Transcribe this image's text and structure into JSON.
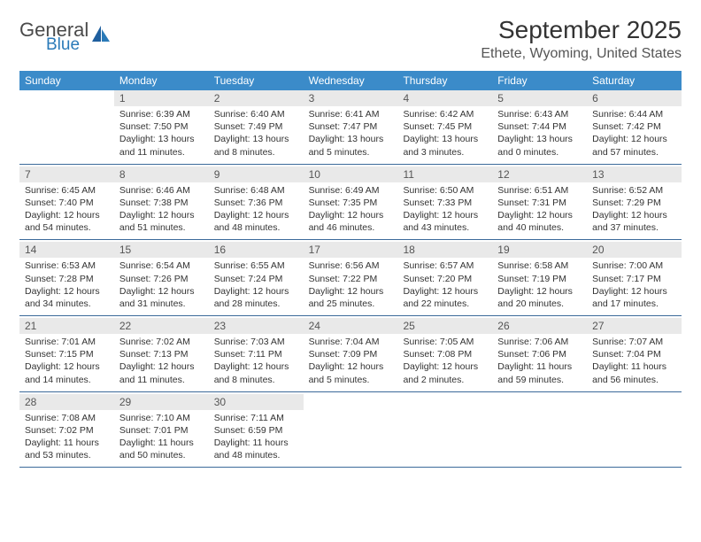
{
  "brand": {
    "general": "General",
    "blue": "Blue"
  },
  "title": "September 2025",
  "location": "Ethete, Wyoming, United States",
  "weekdays": [
    "Sunday",
    "Monday",
    "Tuesday",
    "Wednesday",
    "Thursday",
    "Friday",
    "Saturday"
  ],
  "colors": {
    "header_bg": "#3b8bc9",
    "header_text": "#ffffff",
    "daynum_bg": "#e9e9e9",
    "daynum_text": "#555555",
    "body_text": "#333333",
    "rule": "#3b6a9a",
    "logo_general": "#4a4a4a",
    "logo_blue": "#2a7ab8"
  },
  "typography": {
    "title_fontsize": 28,
    "location_fontsize": 16,
    "weekday_fontsize": 12,
    "daynum_fontsize": 12,
    "content_fontsize": 10.5,
    "font_family": "Arial"
  },
  "weeks": [
    [
      {
        "num": "",
        "sunrise": "",
        "sunset": "",
        "daylight": ""
      },
      {
        "num": "1",
        "sunrise": "Sunrise: 6:39 AM",
        "sunset": "Sunset: 7:50 PM",
        "daylight": "Daylight: 13 hours and 11 minutes."
      },
      {
        "num": "2",
        "sunrise": "Sunrise: 6:40 AM",
        "sunset": "Sunset: 7:49 PM",
        "daylight": "Daylight: 13 hours and 8 minutes."
      },
      {
        "num": "3",
        "sunrise": "Sunrise: 6:41 AM",
        "sunset": "Sunset: 7:47 PM",
        "daylight": "Daylight: 13 hours and 5 minutes."
      },
      {
        "num": "4",
        "sunrise": "Sunrise: 6:42 AM",
        "sunset": "Sunset: 7:45 PM",
        "daylight": "Daylight: 13 hours and 3 minutes."
      },
      {
        "num": "5",
        "sunrise": "Sunrise: 6:43 AM",
        "sunset": "Sunset: 7:44 PM",
        "daylight": "Daylight: 13 hours and 0 minutes."
      },
      {
        "num": "6",
        "sunrise": "Sunrise: 6:44 AM",
        "sunset": "Sunset: 7:42 PM",
        "daylight": "Daylight: 12 hours and 57 minutes."
      }
    ],
    [
      {
        "num": "7",
        "sunrise": "Sunrise: 6:45 AM",
        "sunset": "Sunset: 7:40 PM",
        "daylight": "Daylight: 12 hours and 54 minutes."
      },
      {
        "num": "8",
        "sunrise": "Sunrise: 6:46 AM",
        "sunset": "Sunset: 7:38 PM",
        "daylight": "Daylight: 12 hours and 51 minutes."
      },
      {
        "num": "9",
        "sunrise": "Sunrise: 6:48 AM",
        "sunset": "Sunset: 7:36 PM",
        "daylight": "Daylight: 12 hours and 48 minutes."
      },
      {
        "num": "10",
        "sunrise": "Sunrise: 6:49 AM",
        "sunset": "Sunset: 7:35 PM",
        "daylight": "Daylight: 12 hours and 46 minutes."
      },
      {
        "num": "11",
        "sunrise": "Sunrise: 6:50 AM",
        "sunset": "Sunset: 7:33 PM",
        "daylight": "Daylight: 12 hours and 43 minutes."
      },
      {
        "num": "12",
        "sunrise": "Sunrise: 6:51 AM",
        "sunset": "Sunset: 7:31 PM",
        "daylight": "Daylight: 12 hours and 40 minutes."
      },
      {
        "num": "13",
        "sunrise": "Sunrise: 6:52 AM",
        "sunset": "Sunset: 7:29 PM",
        "daylight": "Daylight: 12 hours and 37 minutes."
      }
    ],
    [
      {
        "num": "14",
        "sunrise": "Sunrise: 6:53 AM",
        "sunset": "Sunset: 7:28 PM",
        "daylight": "Daylight: 12 hours and 34 minutes."
      },
      {
        "num": "15",
        "sunrise": "Sunrise: 6:54 AM",
        "sunset": "Sunset: 7:26 PM",
        "daylight": "Daylight: 12 hours and 31 minutes."
      },
      {
        "num": "16",
        "sunrise": "Sunrise: 6:55 AM",
        "sunset": "Sunset: 7:24 PM",
        "daylight": "Daylight: 12 hours and 28 minutes."
      },
      {
        "num": "17",
        "sunrise": "Sunrise: 6:56 AM",
        "sunset": "Sunset: 7:22 PM",
        "daylight": "Daylight: 12 hours and 25 minutes."
      },
      {
        "num": "18",
        "sunrise": "Sunrise: 6:57 AM",
        "sunset": "Sunset: 7:20 PM",
        "daylight": "Daylight: 12 hours and 22 minutes."
      },
      {
        "num": "19",
        "sunrise": "Sunrise: 6:58 AM",
        "sunset": "Sunset: 7:19 PM",
        "daylight": "Daylight: 12 hours and 20 minutes."
      },
      {
        "num": "20",
        "sunrise": "Sunrise: 7:00 AM",
        "sunset": "Sunset: 7:17 PM",
        "daylight": "Daylight: 12 hours and 17 minutes."
      }
    ],
    [
      {
        "num": "21",
        "sunrise": "Sunrise: 7:01 AM",
        "sunset": "Sunset: 7:15 PM",
        "daylight": "Daylight: 12 hours and 14 minutes."
      },
      {
        "num": "22",
        "sunrise": "Sunrise: 7:02 AM",
        "sunset": "Sunset: 7:13 PM",
        "daylight": "Daylight: 12 hours and 11 minutes."
      },
      {
        "num": "23",
        "sunrise": "Sunrise: 7:03 AM",
        "sunset": "Sunset: 7:11 PM",
        "daylight": "Daylight: 12 hours and 8 minutes."
      },
      {
        "num": "24",
        "sunrise": "Sunrise: 7:04 AM",
        "sunset": "Sunset: 7:09 PM",
        "daylight": "Daylight: 12 hours and 5 minutes."
      },
      {
        "num": "25",
        "sunrise": "Sunrise: 7:05 AM",
        "sunset": "Sunset: 7:08 PM",
        "daylight": "Daylight: 12 hours and 2 minutes."
      },
      {
        "num": "26",
        "sunrise": "Sunrise: 7:06 AM",
        "sunset": "Sunset: 7:06 PM",
        "daylight": "Daylight: 11 hours and 59 minutes."
      },
      {
        "num": "27",
        "sunrise": "Sunrise: 7:07 AM",
        "sunset": "Sunset: 7:04 PM",
        "daylight": "Daylight: 11 hours and 56 minutes."
      }
    ],
    [
      {
        "num": "28",
        "sunrise": "Sunrise: 7:08 AM",
        "sunset": "Sunset: 7:02 PM",
        "daylight": "Daylight: 11 hours and 53 minutes."
      },
      {
        "num": "29",
        "sunrise": "Sunrise: 7:10 AM",
        "sunset": "Sunset: 7:01 PM",
        "daylight": "Daylight: 11 hours and 50 minutes."
      },
      {
        "num": "30",
        "sunrise": "Sunrise: 7:11 AM",
        "sunset": "Sunset: 6:59 PM",
        "daylight": "Daylight: 11 hours and 48 minutes."
      },
      {
        "num": "",
        "sunrise": "",
        "sunset": "",
        "daylight": ""
      },
      {
        "num": "",
        "sunrise": "",
        "sunset": "",
        "daylight": ""
      },
      {
        "num": "",
        "sunrise": "",
        "sunset": "",
        "daylight": ""
      },
      {
        "num": "",
        "sunrise": "",
        "sunset": "",
        "daylight": ""
      }
    ]
  ]
}
